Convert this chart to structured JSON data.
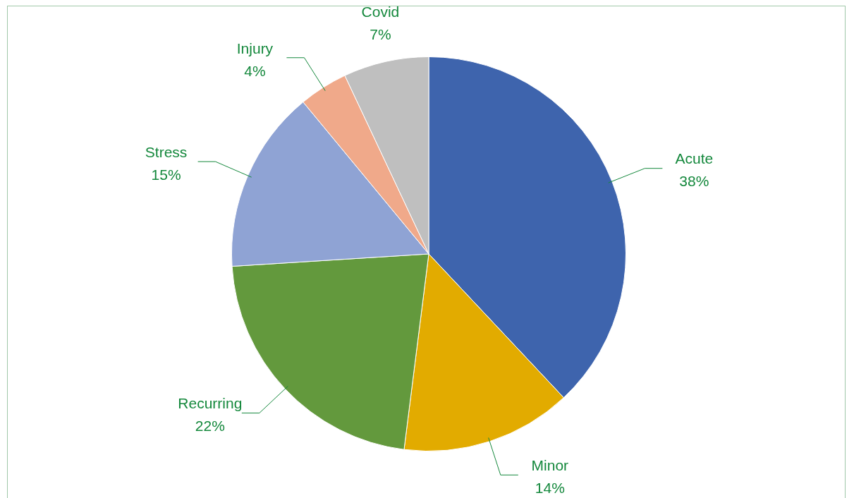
{
  "chart_data": {
    "type": "pie",
    "categories": [
      "Acute",
      "Minor",
      "Recurring",
      "Stress",
      "Injury",
      "Covid"
    ],
    "values": [
      38,
      14,
      22,
      15,
      4,
      7
    ],
    "colors": [
      "#3e64ad",
      "#e2ab00",
      "#63993d",
      "#8fa3d4",
      "#f0a98a",
      "#bfbfbf"
    ],
    "value_labels": [
      "38%",
      "14%",
      "22%",
      "15%",
      "4%",
      "7%"
    ],
    "legend": false
  }
}
